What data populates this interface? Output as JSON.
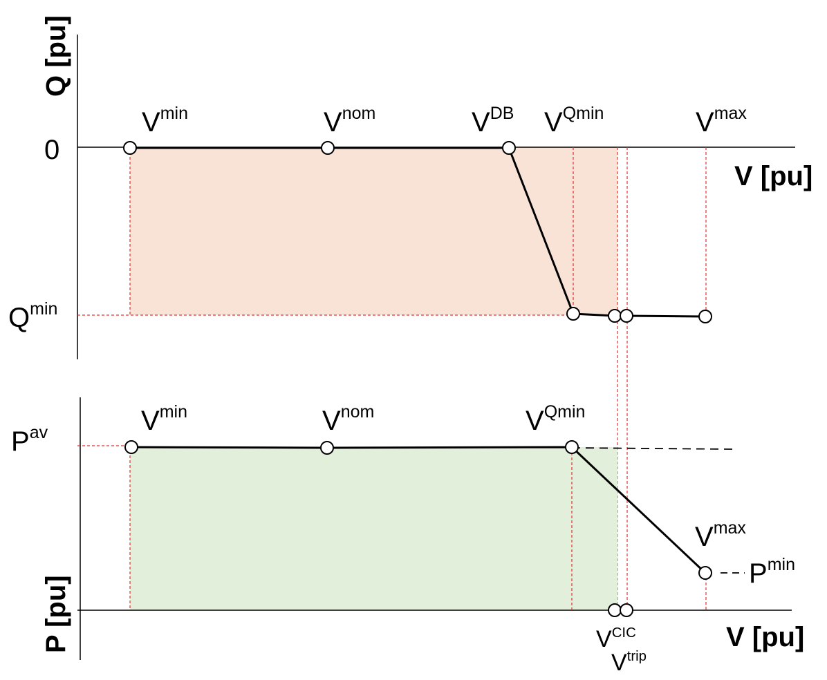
{
  "top": {
    "y_axis_title": "Q [pu]",
    "x_axis_title": "V [pu]",
    "zero_label": "0",
    "qmin_label": {
      "base": "Q",
      "sup": "min"
    },
    "point_labels": [
      {
        "base": "V",
        "sup": "min"
      },
      {
        "base": "V",
        "sup": "nom"
      },
      {
        "base": "V",
        "sup": "DB"
      },
      {
        "base": "V",
        "sup": "Qmin"
      },
      {
        "base": "V",
        "sup": "max"
      }
    ]
  },
  "bottom": {
    "y_axis_title": "P [pu]",
    "x_axis_title": "V [pu]",
    "pav_label": {
      "base": "P",
      "sup": "av"
    },
    "pmin_label": {
      "base": "P",
      "sup": "min"
    },
    "point_labels": [
      {
        "base": "V",
        "sup": "min"
      },
      {
        "base": "V",
        "sup": "nom"
      },
      {
        "base": "V",
        "sup": "Qmin"
      },
      {
        "base": "V",
        "sup": "max"
      },
      {
        "base": "V",
        "sup": "CIC"
      },
      {
        "base": "V",
        "sup": "trip"
      }
    ]
  }
}
